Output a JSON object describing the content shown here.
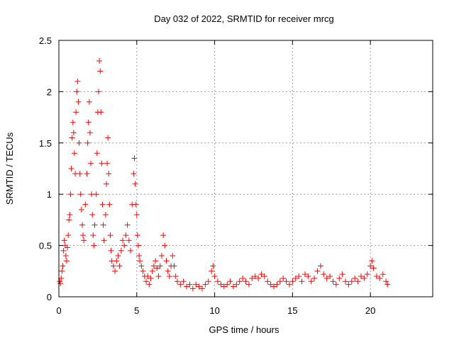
{
  "chart_data": {
    "type": "scatter",
    "title": "Day 032 of 2022, SRMTID for receiver mrcg",
    "xlabel": "GPS time / hours",
    "ylabel": "SRMTID / TECUs",
    "xlim": [
      0,
      24
    ],
    "ylim": [
      0,
      2.5
    ],
    "x_ticks": [
      0,
      5,
      10,
      15,
      20
    ],
    "x_tick_labels": [
      "0",
      "5",
      "10",
      "15",
      "20"
    ],
    "y_ticks": [
      0,
      0.5,
      1,
      1.5,
      2,
      2.5
    ],
    "y_tick_labels": [
      "0",
      "0.5",
      "1",
      "1.5",
      "2",
      "2.5"
    ],
    "grid": true,
    "marker": "+",
    "color": "#ff0000",
    "series": [
      {
        "name": "SRMTID",
        "points": [
          [
            0.05,
            0.15
          ],
          [
            0.1,
            0.13
          ],
          [
            0.15,
            0.18
          ],
          [
            0.2,
            0.25
          ],
          [
            0.25,
            0.3
          ],
          [
            0.3,
            0.45
          ],
          [
            0.35,
            0.55
          ],
          [
            0.4,
            0.5
          ],
          [
            0.45,
            0.4
          ],
          [
            0.5,
            0.35
          ],
          [
            0.55,
            0.48
          ],
          [
            0.6,
            0.6
          ],
          [
            0.65,
            0.75
          ],
          [
            0.7,
            0.8
          ],
          [
            0.75,
            1.0
          ],
          [
            0.8,
            1.25
          ],
          [
            0.85,
            1.55
          ],
          [
            0.9,
            1.7
          ],
          [
            0.95,
            1.6
          ],
          [
            1.0,
            1.4
          ],
          [
            1.05,
            1.2
          ],
          [
            1.1,
            1.8
          ],
          [
            1.15,
            2.0
          ],
          [
            1.2,
            2.1
          ],
          [
            1.25,
            1.9
          ],
          [
            1.3,
            1.5
          ],
          [
            1.35,
            1.2
          ],
          [
            1.4,
            1.0
          ],
          [
            1.45,
            0.85
          ],
          [
            1.5,
            0.7
          ],
          [
            1.55,
            0.6
          ],
          [
            1.6,
            0.55
          ],
          [
            1.7,
            0.9
          ],
          [
            1.8,
            1.2
          ],
          [
            1.85,
            1.5
          ],
          [
            1.9,
            1.7
          ],
          [
            1.95,
            1.9
          ],
          [
            2.0,
            1.6
          ],
          [
            2.05,
            1.3
          ],
          [
            2.1,
            1.0
          ],
          [
            2.15,
            0.8
          ],
          [
            2.2,
            0.6
          ],
          [
            2.25,
            0.5
          ],
          [
            2.3,
            0.7
          ],
          [
            2.4,
            1.0
          ],
          [
            2.45,
            1.4
          ],
          [
            2.5,
            1.8
          ],
          [
            2.55,
            2.0
          ],
          [
            2.6,
            2.3
          ],
          [
            2.65,
            2.2
          ],
          [
            2.7,
            1.8
          ],
          [
            2.75,
            1.3
          ],
          [
            2.8,
            0.9
          ],
          [
            2.85,
            0.7
          ],
          [
            2.9,
            0.55
          ],
          [
            3.0,
            0.8
          ],
          [
            3.05,
            1.1
          ],
          [
            3.1,
            1.3
          ],
          [
            3.15,
            1.55
          ],
          [
            3.2,
            1.2
          ],
          [
            3.25,
            0.9
          ],
          [
            3.3,
            0.6
          ],
          [
            3.35,
            0.45
          ],
          [
            3.4,
            0.35
          ],
          [
            3.5,
            0.3
          ],
          [
            3.6,
            0.25
          ],
          [
            3.7,
            0.35
          ],
          [
            3.8,
            0.4
          ],
          [
            3.9,
            0.3
          ],
          [
            4.0,
            0.45
          ],
          [
            4.1,
            0.55
          ],
          [
            4.2,
            0.5
          ],
          [
            4.3,
            0.6
          ],
          [
            4.4,
            0.7
          ],
          [
            4.5,
            0.55
          ],
          [
            4.6,
            0.45
          ],
          [
            4.7,
            0.9
          ],
          [
            4.8,
            1.2
          ],
          [
            4.85,
            1.35
          ],
          [
            4.9,
            1.1
          ],
          [
            4.95,
            0.9
          ],
          [
            5.0,
            0.8
          ],
          [
            5.05,
            0.6
          ],
          [
            5.1,
            0.5
          ],
          [
            5.15,
            0.4
          ],
          [
            5.2,
            0.35
          ],
          [
            5.3,
            0.3
          ],
          [
            5.4,
            0.25
          ],
          [
            5.5,
            0.2
          ],
          [
            5.6,
            0.15
          ],
          [
            5.7,
            0.2
          ],
          [
            5.8,
            0.12
          ],
          [
            5.9,
            0.18
          ],
          [
            6.0,
            0.25
          ],
          [
            6.1,
            0.3
          ],
          [
            6.2,
            0.35
          ],
          [
            6.3,
            0.28
          ],
          [
            6.4,
            0.2
          ],
          [
            6.5,
            0.3
          ],
          [
            6.6,
            0.4
          ],
          [
            6.7,
            0.6
          ],
          [
            6.8,
            0.5
          ],
          [
            6.9,
            0.35
          ],
          [
            7.0,
            0.25
          ],
          [
            7.1,
            0.2
          ],
          [
            7.2,
            0.3
          ],
          [
            7.3,
            0.4
          ],
          [
            7.4,
            0.3
          ],
          [
            7.5,
            0.2
          ],
          [
            7.6,
            0.15
          ],
          [
            7.8,
            0.12
          ],
          [
            8.0,
            0.15
          ],
          [
            8.2,
            0.1
          ],
          [
            8.4,
            0.12
          ],
          [
            8.6,
            0.08
          ],
          [
            8.8,
            0.12
          ],
          [
            9.0,
            0.1
          ],
          [
            9.2,
            0.08
          ],
          [
            9.4,
            0.12
          ],
          [
            9.6,
            0.15
          ],
          [
            9.8,
            0.25
          ],
          [
            9.9,
            0.3
          ],
          [
            10.0,
            0.2
          ],
          [
            10.2,
            0.15
          ],
          [
            10.4,
            0.12
          ],
          [
            10.6,
            0.1
          ],
          [
            10.8,
            0.12
          ],
          [
            11.0,
            0.15
          ],
          [
            11.2,
            0.1
          ],
          [
            11.4,
            0.12
          ],
          [
            11.6,
            0.15
          ],
          [
            11.8,
            0.18
          ],
          [
            12.0,
            0.15
          ],
          [
            12.2,
            0.12
          ],
          [
            12.4,
            0.18
          ],
          [
            12.6,
            0.2
          ],
          [
            12.8,
            0.18
          ],
          [
            13.0,
            0.22
          ],
          [
            13.2,
            0.2
          ],
          [
            13.4,
            0.15
          ],
          [
            13.6,
            0.12
          ],
          [
            13.8,
            0.1
          ],
          [
            14.0,
            0.12
          ],
          [
            14.2,
            0.15
          ],
          [
            14.4,
            0.18
          ],
          [
            14.6,
            0.15
          ],
          [
            14.8,
            0.12
          ],
          [
            15.0,
            0.15
          ],
          [
            15.2,
            0.18
          ],
          [
            15.4,
            0.2
          ],
          [
            15.6,
            0.15
          ],
          [
            15.8,
            0.22
          ],
          [
            16.0,
            0.2
          ],
          [
            16.2,
            0.15
          ],
          [
            16.4,
            0.18
          ],
          [
            16.6,
            0.25
          ],
          [
            16.8,
            0.3
          ],
          [
            17.0,
            0.22
          ],
          [
            17.2,
            0.18
          ],
          [
            17.4,
            0.2
          ],
          [
            17.6,
            0.15
          ],
          [
            17.8,
            0.12
          ],
          [
            18.0,
            0.18
          ],
          [
            18.2,
            0.22
          ],
          [
            18.4,
            0.15
          ],
          [
            18.6,
            0.12
          ],
          [
            18.8,
            0.15
          ],
          [
            19.0,
            0.18
          ],
          [
            19.2,
            0.15
          ],
          [
            19.4,
            0.2
          ],
          [
            19.6,
            0.18
          ],
          [
            19.8,
            0.22
          ],
          [
            20.0,
            0.3
          ],
          [
            20.1,
            0.35
          ],
          [
            20.2,
            0.28
          ],
          [
            20.4,
            0.2
          ],
          [
            20.6,
            0.18
          ],
          [
            20.8,
            0.22
          ],
          [
            21.0,
            0.15
          ],
          [
            21.1,
            0.12
          ]
        ]
      }
    ]
  }
}
